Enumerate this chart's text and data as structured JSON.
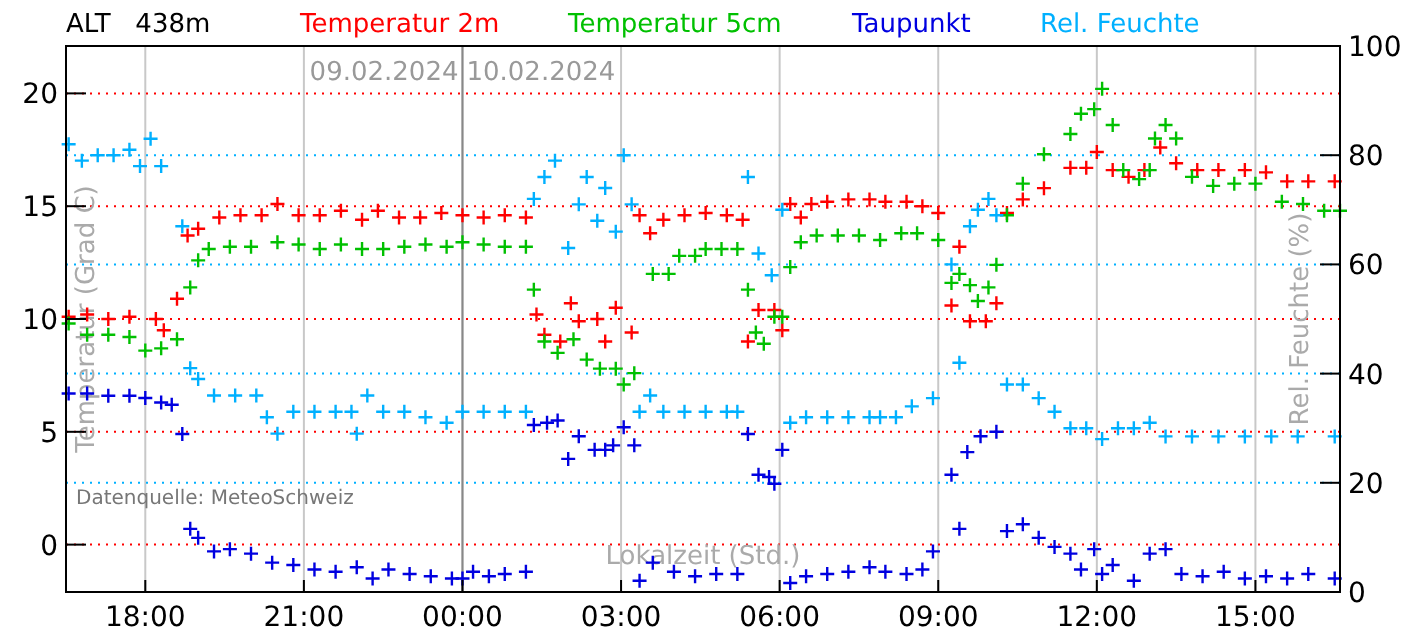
{
  "chart_data": {
    "type": "scatter",
    "title": "ALT   438m",
    "xlabel": "Lokalzeit (Std.)",
    "ylabel": "Temperatur (Grad C)",
    "y2label": "Rel. Feuchte (%)",
    "annotations": [
      "09.02.2024",
      "10.02.2024",
      "Datenquelle: MeteoSchweiz"
    ],
    "ref_lines": [
      {
        "axis": "x",
        "value": "2024-02-10T00:00",
        "color": "#888888"
      }
    ],
    "xlim": [
      "2024-02-09T16:30",
      "2024-02-10T16:36"
    ],
    "xticks": [
      {
        "value": "2024-02-09T18:00",
        "label": "18:00"
      },
      {
        "value": "2024-02-09T21:00",
        "label": "21:00"
      },
      {
        "value": "2024-02-10T00:00",
        "label": "00:00"
      },
      {
        "value": "2024-02-10T03:00",
        "label": "03:00"
      },
      {
        "value": "2024-02-10T06:00",
        "label": "06:00"
      },
      {
        "value": "2024-02-10T09:00",
        "label": "09:00"
      },
      {
        "value": "2024-02-10T12:00",
        "label": "12:00"
      },
      {
        "value": "2024-02-10T15:00",
        "label": "15:00"
      }
    ],
    "ylim": [
      -2.1,
      22.1
    ],
    "yticks": [
      0,
      5,
      10,
      15,
      20
    ],
    "y2lim": [
      0,
      100
    ],
    "y2ticks": [
      0,
      20,
      40,
      60,
      80,
      100
    ],
    "grid": true,
    "legend": "top",
    "marker": "cross",
    "series": [
      {
        "name": "Temperatur 2m",
        "color": "#ff0000",
        "x": [
          "2024-02-09T16:33",
          "2024-02-09T16:54",
          "2024-02-09T17:18",
          "2024-02-09T17:42",
          "2024-02-09T18:12",
          "2024-02-09T18:21",
          "2024-02-09T18:36",
          "2024-02-09T18:48",
          "2024-02-09T19:00",
          "2024-02-09T19:24",
          "2024-02-09T19:48",
          "2024-02-09T20:12",
          "2024-02-09T20:30",
          "2024-02-09T20:54",
          "2024-02-09T21:18",
          "2024-02-09T21:42",
          "2024-02-09T22:06",
          "2024-02-09T22:24",
          "2024-02-09T22:48",
          "2024-02-09T23:12",
          "2024-02-09T23:36",
          "2024-02-10T00:00",
          "2024-02-10T00:24",
          "2024-02-10T00:48",
          "2024-02-10T01:12",
          "2024-02-10T01:24",
          "2024-02-10T01:33",
          "2024-02-10T01:51",
          "2024-02-10T02:03",
          "2024-02-10T02:12",
          "2024-02-10T02:33",
          "2024-02-10T02:42",
          "2024-02-10T02:54",
          "2024-02-10T03:12",
          "2024-02-10T03:21",
          "2024-02-10T03:33",
          "2024-02-10T03:48",
          "2024-02-10T04:12",
          "2024-02-10T04:36",
          "2024-02-10T05:00",
          "2024-02-10T05:18",
          "2024-02-10T05:24",
          "2024-02-10T05:36",
          "2024-02-10T05:54",
          "2024-02-10T06:03",
          "2024-02-10T06:12",
          "2024-02-10T06:24",
          "2024-02-10T06:36",
          "2024-02-10T06:54",
          "2024-02-10T07:18",
          "2024-02-10T07:42",
          "2024-02-10T08:00",
          "2024-02-10T08:24",
          "2024-02-10T08:42",
          "2024-02-10T09:00",
          "2024-02-10T09:15",
          "2024-02-10T09:24",
          "2024-02-10T09:36",
          "2024-02-10T09:54",
          "2024-02-10T10:06",
          "2024-02-10T10:18",
          "2024-02-10T10:36",
          "2024-02-10T11:00",
          "2024-02-10T11:30",
          "2024-02-10T11:48",
          "2024-02-10T12:00",
          "2024-02-10T12:18",
          "2024-02-10T12:36",
          "2024-02-10T12:54",
          "2024-02-10T13:12",
          "2024-02-10T13:30",
          "2024-02-10T13:54",
          "2024-02-10T14:18",
          "2024-02-10T14:48",
          "2024-02-10T15:12",
          "2024-02-10T15:36",
          "2024-02-10T16:00",
          "2024-02-10T16:30"
        ],
        "values": [
          10.1,
          10.2,
          10.0,
          10.1,
          10.0,
          9.5,
          10.9,
          13.7,
          14.0,
          14.5,
          14.6,
          14.6,
          15.1,
          14.6,
          14.6,
          14.8,
          14.4,
          14.8,
          14.5,
          14.5,
          14.7,
          14.6,
          14.5,
          14.6,
          14.5,
          10.2,
          9.3,
          9.0,
          10.7,
          9.9,
          10.0,
          9.0,
          10.5,
          9.4,
          14.6,
          13.8,
          14.4,
          14.6,
          14.7,
          14.6,
          14.4,
          9.0,
          10.4,
          10.4,
          9.5,
          15.1,
          14.5,
          15.1,
          15.2,
          15.3,
          15.3,
          15.2,
          15.2,
          15.0,
          14.7,
          10.6,
          13.2,
          9.9,
          9.9,
          10.7,
          14.7,
          15.3,
          15.8,
          16.7,
          16.7,
          17.4,
          16.6,
          16.3,
          16.6,
          17.6,
          16.9,
          16.6,
          16.6,
          16.6,
          16.5,
          16.1,
          16.1,
          16.1
        ]
      },
      {
        "name": "Temperatur 5cm",
        "color": "#00c000",
        "x": [
          "2024-02-09T16:33",
          "2024-02-09T16:54",
          "2024-02-09T17:18",
          "2024-02-09T17:42",
          "2024-02-09T18:00",
          "2024-02-09T18:18",
          "2024-02-09T18:36",
          "2024-02-09T18:51",
          "2024-02-09T19:00",
          "2024-02-09T19:12",
          "2024-02-09T19:36",
          "2024-02-09T20:00",
          "2024-02-09T20:30",
          "2024-02-09T20:54",
          "2024-02-09T21:18",
          "2024-02-09T21:42",
          "2024-02-09T22:06",
          "2024-02-09T22:30",
          "2024-02-09T22:54",
          "2024-02-09T23:18",
          "2024-02-09T23:42",
          "2024-02-10T00:00",
          "2024-02-10T00:24",
          "2024-02-10T00:48",
          "2024-02-10T01:12",
          "2024-02-10T01:21",
          "2024-02-10T01:33",
          "2024-02-10T01:48",
          "2024-02-10T02:06",
          "2024-02-10T02:21",
          "2024-02-10T02:36",
          "2024-02-10T02:54",
          "2024-02-10T03:03",
          "2024-02-10T03:15",
          "2024-02-10T03:36",
          "2024-02-10T03:54",
          "2024-02-10T04:06",
          "2024-02-10T04:24",
          "2024-02-10T04:36",
          "2024-02-10T04:54",
          "2024-02-10T05:12",
          "2024-02-10T05:24",
          "2024-02-10T05:33",
          "2024-02-10T05:42",
          "2024-02-10T05:54",
          "2024-02-10T06:03",
          "2024-02-10T06:12",
          "2024-02-10T06:24",
          "2024-02-10T06:42",
          "2024-02-10T07:06",
          "2024-02-10T07:30",
          "2024-02-10T07:54",
          "2024-02-10T08:18",
          "2024-02-10T08:36",
          "2024-02-10T09:00",
          "2024-02-10T09:15",
          "2024-02-10T09:24",
          "2024-02-10T09:36",
          "2024-02-10T09:45",
          "2024-02-10T09:57",
          "2024-02-10T10:06",
          "2024-02-10T10:18",
          "2024-02-10T10:36",
          "2024-02-10T11:00",
          "2024-02-10T11:30",
          "2024-02-10T11:42",
          "2024-02-10T11:57",
          "2024-02-10T12:06",
          "2024-02-10T12:18",
          "2024-02-10T12:30",
          "2024-02-10T12:48",
          "2024-02-10T13:00",
          "2024-02-10T13:06",
          "2024-02-10T13:18",
          "2024-02-10T13:30",
          "2024-02-10T13:48",
          "2024-02-10T14:12",
          "2024-02-10T14:36",
          "2024-02-10T15:00",
          "2024-02-10T15:30",
          "2024-02-10T15:54",
          "2024-02-10T16:18",
          "2024-02-10T16:36"
        ],
        "values": [
          9.8,
          9.3,
          9.3,
          9.2,
          8.6,
          8.7,
          9.1,
          11.4,
          12.6,
          13.1,
          13.2,
          13.2,
          13.4,
          13.3,
          13.1,
          13.3,
          13.1,
          13.1,
          13.2,
          13.3,
          13.2,
          13.4,
          13.3,
          13.2,
          13.2,
          11.3,
          9.0,
          8.5,
          9.1,
          8.2,
          7.8,
          7.8,
          7.1,
          7.6,
          12.0,
          12.0,
          12.8,
          12.8,
          13.1,
          13.1,
          13.1,
          11.3,
          9.4,
          8.9,
          10.1,
          10.1,
          12.3,
          13.4,
          13.7,
          13.7,
          13.7,
          13.5,
          13.8,
          13.8,
          13.5,
          11.6,
          12.0,
          11.5,
          10.8,
          11.4,
          12.4,
          14.6,
          16.0,
          17.3,
          18.2,
          19.1,
          19.3,
          20.2,
          18.6,
          16.6,
          16.2,
          16.6,
          18.0,
          18.6,
          18.0,
          16.3,
          15.9,
          16.0,
          16.0,
          15.2,
          15.1,
          14.8,
          14.8
        ]
      },
      {
        "name": "Taupunkt",
        "color": "#0000e0",
        "x": [
          "2024-02-09T16:33",
          "2024-02-09T16:54",
          "2024-02-09T17:18",
          "2024-02-09T17:42",
          "2024-02-09T18:00",
          "2024-02-09T18:18",
          "2024-02-09T18:30",
          "2024-02-09T18:42",
          "2024-02-09T18:51",
          "2024-02-09T19:00",
          "2024-02-09T19:18",
          "2024-02-09T19:36",
          "2024-02-09T20:00",
          "2024-02-09T20:24",
          "2024-02-09T20:48",
          "2024-02-09T21:12",
          "2024-02-09T21:36",
          "2024-02-09T22:00",
          "2024-02-09T22:18",
          "2024-02-09T22:36",
          "2024-02-09T23:00",
          "2024-02-09T23:24",
          "2024-02-09T23:48",
          "2024-02-10T00:00",
          "2024-02-10T00:12",
          "2024-02-10T00:30",
          "2024-02-10T00:48",
          "2024-02-10T01:12",
          "2024-02-10T01:21",
          "2024-02-10T01:36",
          "2024-02-10T01:48",
          "2024-02-10T02:00",
          "2024-02-10T02:12",
          "2024-02-10T02:30",
          "2024-02-10T02:42",
          "2024-02-10T02:51",
          "2024-02-10T03:03",
          "2024-02-10T03:15",
          "2024-02-10T03:21",
          "2024-02-10T03:36",
          "2024-02-10T04:00",
          "2024-02-10T04:24",
          "2024-02-10T04:48",
          "2024-02-10T05:12",
          "2024-02-10T05:24",
          "2024-02-10T05:36",
          "2024-02-10T05:48",
          "2024-02-10T05:54",
          "2024-02-10T06:03",
          "2024-02-10T06:12",
          "2024-02-10T06:30",
          "2024-02-10T06:54",
          "2024-02-10T07:18",
          "2024-02-10T07:42",
          "2024-02-10T08:00",
          "2024-02-10T08:24",
          "2024-02-10T08:42",
          "2024-02-10T08:54",
          "2024-02-10T09:15",
          "2024-02-10T09:24",
          "2024-02-10T09:33",
          "2024-02-10T09:48",
          "2024-02-10T10:06",
          "2024-02-10T10:18",
          "2024-02-10T10:36",
          "2024-02-10T10:54",
          "2024-02-10T11:12",
          "2024-02-10T11:30",
          "2024-02-10T11:42",
          "2024-02-10T11:57",
          "2024-02-10T12:06",
          "2024-02-10T12:18",
          "2024-02-10T12:42",
          "2024-02-10T13:00",
          "2024-02-10T13:18",
          "2024-02-10T13:36",
          "2024-02-10T14:00",
          "2024-02-10T14:24",
          "2024-02-10T14:48",
          "2024-02-10T15:12",
          "2024-02-10T15:36",
          "2024-02-10T16:00",
          "2024-02-10T16:30"
        ],
        "values": [
          6.7,
          6.7,
          6.6,
          6.6,
          6.5,
          6.3,
          6.2,
          4.9,
          0.7,
          0.3,
          -0.3,
          -0.2,
          -0.4,
          -0.8,
          -0.9,
          -1.1,
          -1.2,
          -1.0,
          -1.5,
          -1.1,
          -1.3,
          -1.4,
          -1.5,
          -1.5,
          -1.2,
          -1.4,
          -1.3,
          -1.2,
          5.3,
          5.4,
          5.5,
          3.8,
          4.8,
          4.2,
          4.2,
          4.4,
          5.2,
          4.4,
          -1.6,
          -0.8,
          -1.2,
          -1.4,
          -1.3,
          -1.3,
          4.9,
          3.1,
          3.0,
          2.7,
          4.2,
          -1.7,
          -1.4,
          -1.3,
          -1.2,
          -1.0,
          -1.2,
          -1.3,
          -1.1,
          -0.3,
          3.1,
          0.7,
          4.1,
          4.8,
          5.0,
          0.6,
          0.9,
          0.3,
          -0.1,
          -0.4,
          -1.1,
          -0.2,
          -1.3,
          -0.9,
          -1.6,
          -0.4,
          -0.2,
          -1.3,
          -1.4,
          -1.2,
          -1.5,
          -1.4,
          -1.5,
          -1.3,
          -1.5
        ]
      },
      {
        "name": "Rel. Feuchte",
        "color": "#00b0ff",
        "axis": "y2",
        "x": [
          "2024-02-09T16:33",
          "2024-02-09T16:48",
          "2024-02-09T17:06",
          "2024-02-09T17:24",
          "2024-02-09T17:42",
          "2024-02-09T17:54",
          "2024-02-09T18:06",
          "2024-02-09T18:18",
          "2024-02-09T18:42",
          "2024-02-09T18:51",
          "2024-02-09T19:00",
          "2024-02-09T19:18",
          "2024-02-09T19:42",
          "2024-02-09T20:06",
          "2024-02-09T20:18",
          "2024-02-09T20:30",
          "2024-02-09T20:48",
          "2024-02-09T21:12",
          "2024-02-09T21:36",
          "2024-02-09T21:54",
          "2024-02-09T22:00",
          "2024-02-09T22:12",
          "2024-02-09T22:30",
          "2024-02-09T22:54",
          "2024-02-09T23:18",
          "2024-02-09T23:42",
          "2024-02-10T00:00",
          "2024-02-10T00:24",
          "2024-02-10T00:48",
          "2024-02-10T01:12",
          "2024-02-10T01:21",
          "2024-02-10T01:33",
          "2024-02-10T01:45",
          "2024-02-10T02:00",
          "2024-02-10T02:12",
          "2024-02-10T02:21",
          "2024-02-10T02:33",
          "2024-02-10T02:42",
          "2024-02-10T02:54",
          "2024-02-10T03:03",
          "2024-02-10T03:12",
          "2024-02-10T03:21",
          "2024-02-10T03:33",
          "2024-02-10T03:48",
          "2024-02-10T04:12",
          "2024-02-10T04:36",
          "2024-02-10T05:00",
          "2024-02-10T05:12",
          "2024-02-10T05:24",
          "2024-02-10T05:36",
          "2024-02-10T05:51",
          "2024-02-10T06:03",
          "2024-02-10T06:12",
          "2024-02-10T06:30",
          "2024-02-10T06:54",
          "2024-02-10T07:18",
          "2024-02-10T07:42",
          "2024-02-10T07:54",
          "2024-02-10T08:12",
          "2024-02-10T08:30",
          "2024-02-10T08:54",
          "2024-02-10T09:15",
          "2024-02-10T09:24",
          "2024-02-10T09:36",
          "2024-02-10T09:45",
          "2024-02-10T09:57",
          "2024-02-10T10:06",
          "2024-02-10T10:18",
          "2024-02-10T10:36",
          "2024-02-10T10:54",
          "2024-02-10T11:12",
          "2024-02-10T11:30",
          "2024-02-10T11:48",
          "2024-02-10T12:06",
          "2024-02-10T12:24",
          "2024-02-10T12:42",
          "2024-02-10T13:00",
          "2024-02-10T13:18",
          "2024-02-10T13:48",
          "2024-02-10T14:18",
          "2024-02-10T14:48",
          "2024-02-10T15:18",
          "2024-02-10T15:48",
          "2024-02-10T16:30"
        ],
        "values": [
          82,
          79,
          80,
          80,
          81,
          78,
          83,
          78,
          67,
          41,
          39,
          36,
          36,
          36,
          32,
          29,
          33,
          33,
          33,
          33,
          29,
          36,
          33,
          33,
          32,
          31,
          33,
          33,
          33,
          33,
          72,
          76,
          79,
          63,
          71,
          76,
          68,
          74,
          66,
          80,
          71,
          33,
          36,
          33,
          33,
          33,
          33,
          33,
          76,
          62,
          58,
          70,
          31,
          32,
          32,
          32,
          32,
          32,
          32,
          34,
          35.5,
          60,
          42,
          67,
          70,
          72,
          69,
          38,
          38,
          35.5,
          33,
          30,
          30,
          28,
          30,
          30,
          31,
          28.5,
          28.5,
          28.5,
          28.5,
          28.5,
          28.5,
          28.5
        ]
      }
    ]
  }
}
